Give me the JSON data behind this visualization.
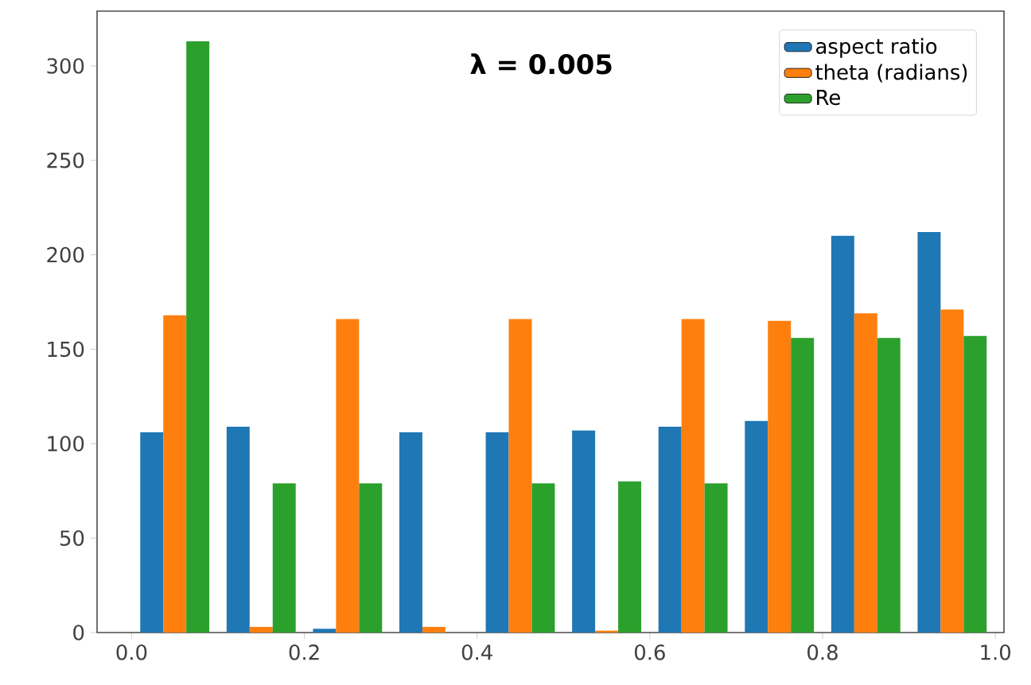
{
  "chart_data": {
    "type": "histogram",
    "bins": [
      0.0,
      0.1,
      0.2,
      0.3,
      0.4,
      0.5,
      0.6,
      0.7,
      0.8,
      0.9,
      1.0
    ],
    "series": [
      {
        "name": "aspect ratio",
        "color": "#1f77b4",
        "values": [
          106,
          109,
          2,
          106,
          106,
          107,
          109,
          112,
          210,
          212
        ]
      },
      {
        "name": "theta (radians)",
        "color": "#ff7f0e",
        "values": [
          168,
          3,
          166,
          3,
          166,
          1,
          166,
          165,
          169,
          171
        ]
      },
      {
        "name": "Re",
        "color": "#2ca02c",
        "values": [
          313,
          79,
          79,
          0,
          79,
          80,
          79,
          156,
          156,
          157
        ]
      }
    ],
    "xlim": [
      -0.04,
      1.01
    ],
    "ylim": [
      0,
      329
    ],
    "xticks": [
      {
        "value": 0.0,
        "label": "0.0"
      },
      {
        "value": 0.2,
        "label": "0.2"
      },
      {
        "value": 0.4,
        "label": "0.4"
      },
      {
        "value": 0.6,
        "label": "0.6"
      },
      {
        "value": 0.8,
        "label": "0.8"
      },
      {
        "value": 1.0,
        "label": "1.0"
      }
    ],
    "yticks": [
      0,
      50,
      100,
      150,
      200,
      250,
      300
    ],
    "annotations": [
      "λ = 0.005"
    ],
    "legend": "top right",
    "grid": false
  }
}
